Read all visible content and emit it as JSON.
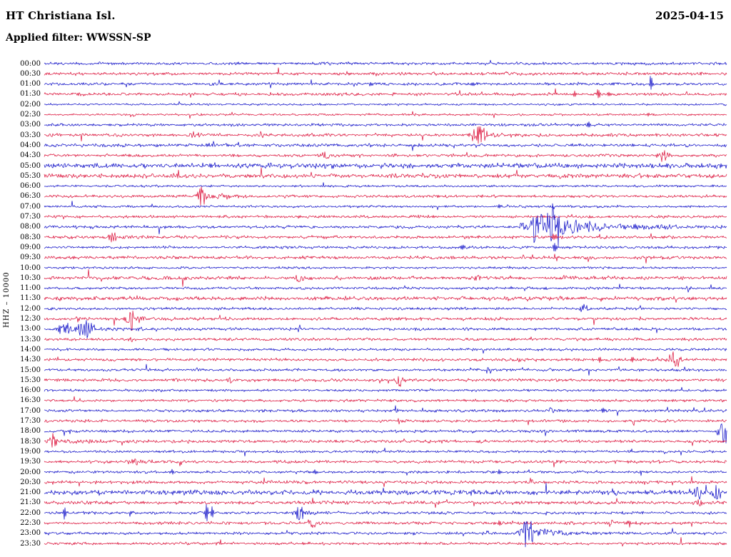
{
  "header": {
    "station": "HT Christiana Isl.",
    "date": "2025-04-15",
    "filter": "Applied filter: WWSSN-SP",
    "channel": "HHZ – 10000"
  },
  "chart_data": {
    "type": "line",
    "variant": "helicorder seismogram, 48 half-hour traces stacked vertically, alternating colors",
    "title": "HT Christiana Isl.",
    "date": "2025-04-15",
    "filter": "WWSSN-SP",
    "ylabel": "HHZ – 10000",
    "row_interval_minutes": 30,
    "grid": false,
    "legend": "none",
    "amp_units": "px at displayed scale",
    "trace_colors": {
      "blue": "#1212c8",
      "red": "#dc143c"
    },
    "rows": [
      {
        "label": "00:00",
        "color": "blue",
        "noise": 1.0
      },
      {
        "label": "00:30",
        "color": "red",
        "noise": 1.1
      },
      {
        "label": "01:00",
        "color": "blue",
        "noise": 1.0
      },
      {
        "label": "01:30",
        "color": "red",
        "noise": 1.05
      },
      {
        "label": "02:00",
        "color": "blue",
        "noise": 0.7
      },
      {
        "label": "02:30",
        "color": "red",
        "noise": 0.75
      },
      {
        "label": "03:00",
        "color": "blue",
        "noise": 0.95
      },
      {
        "label": "03:30",
        "color": "red",
        "noise": 1.1
      },
      {
        "label": "04:00",
        "color": "blue",
        "noise": 1.15
      },
      {
        "label": "04:30",
        "color": "red",
        "noise": 1.05
      },
      {
        "label": "05:00",
        "color": "blue",
        "noise": 1.8
      },
      {
        "label": "05:30",
        "color": "red",
        "noise": 1.55
      },
      {
        "label": "06:00",
        "color": "blue",
        "noise": 0.8
      },
      {
        "label": "06:30",
        "color": "red",
        "noise": 1.0
      },
      {
        "label": "07:00",
        "color": "blue",
        "noise": 0.85
      },
      {
        "label": "07:30",
        "color": "red",
        "noise": 1.0
      },
      {
        "label": "08:00",
        "color": "blue",
        "noise": 1.05
      },
      {
        "label": "08:30",
        "color": "red",
        "noise": 1.1
      },
      {
        "label": "09:00",
        "color": "blue",
        "noise": 0.95
      },
      {
        "label": "09:30",
        "color": "red",
        "noise": 1.15
      },
      {
        "label": "10:00",
        "color": "blue",
        "noise": 0.85
      },
      {
        "label": "10:30",
        "color": "red",
        "noise": 1.25
      },
      {
        "label": "11:00",
        "color": "blue",
        "noise": 0.95
      },
      {
        "label": "11:30",
        "color": "red",
        "noise": 1.35
      },
      {
        "label": "12:00",
        "color": "blue",
        "noise": 0.95
      },
      {
        "label": "12:30",
        "color": "red",
        "noise": 1.1
      },
      {
        "label": "13:00",
        "color": "blue",
        "noise": 1.0
      },
      {
        "label": "13:30",
        "color": "red",
        "noise": 1.05
      },
      {
        "label": "14:00",
        "color": "blue",
        "noise": 0.9
      },
      {
        "label": "14:30",
        "color": "red",
        "noise": 1.05
      },
      {
        "label": "15:00",
        "color": "blue",
        "noise": 0.95
      },
      {
        "label": "15:30",
        "color": "red",
        "noise": 1.1
      },
      {
        "label": "16:00",
        "color": "blue",
        "noise": 0.85
      },
      {
        "label": "16:30",
        "color": "red",
        "noise": 0.9
      },
      {
        "label": "17:00",
        "color": "blue",
        "noise": 0.95
      },
      {
        "label": "17:30",
        "color": "red",
        "noise": 1.0
      },
      {
        "label": "18:00",
        "color": "blue",
        "noise": 1.0
      },
      {
        "label": "18:30",
        "color": "red",
        "noise": 1.1
      },
      {
        "label": "19:00",
        "color": "blue",
        "noise": 0.9
      },
      {
        "label": "19:30",
        "color": "red",
        "noise": 1.1
      },
      {
        "label": "20:00",
        "color": "blue",
        "noise": 0.95
      },
      {
        "label": "20:30",
        "color": "red",
        "noise": 1.1
      },
      {
        "label": "21:00",
        "color": "blue",
        "noise": 1.7
      },
      {
        "label": "21:30",
        "color": "red",
        "noise": 1.2
      },
      {
        "label": "22:00",
        "color": "blue",
        "noise": 1.0
      },
      {
        "label": "22:30",
        "color": "red",
        "noise": 1.1
      },
      {
        "label": "23:00",
        "color": "blue",
        "noise": 1.0
      },
      {
        "label": "23:30",
        "color": "red",
        "noise": 1.0
      }
    ],
    "events": [
      {
        "row": 0,
        "x": 0.41,
        "amp": 4,
        "w": 6
      },
      {
        "row": 1,
        "x": 0.675,
        "amp": 3,
        "w": 3
      },
      {
        "row": 2,
        "x": 0.478,
        "amp": 4,
        "w": 1.5
      },
      {
        "row": 2,
        "x": 0.627,
        "amp": 3,
        "w": 2
      },
      {
        "row": 2,
        "x": 0.889,
        "amp": 14,
        "w": 1.2
      },
      {
        "row": 3,
        "x": 0.777,
        "amp": 4,
        "w": 1.8
      },
      {
        "row": 3,
        "x": 0.812,
        "amp": 9,
        "w": 1.4
      },
      {
        "row": 3,
        "x": 0.828,
        "amp": 6,
        "w": 1.4
      },
      {
        "row": 5,
        "x": 0.885,
        "amp": 2.5,
        "w": 1.5
      },
      {
        "row": 6,
        "x": 0.798,
        "amp": 5,
        "w": 1.6
      },
      {
        "row": 7,
        "x": 0.218,
        "amp": 4,
        "w": 5
      },
      {
        "row": 7,
        "x": 0.316,
        "amp": 4,
        "w": 4
      },
      {
        "row": 7,
        "x": 0.638,
        "amp": 13,
        "w": 8,
        "tail": 45
      },
      {
        "row": 8,
        "x": 0.24,
        "amp": 2.5,
        "w": 2
      },
      {
        "row": 8,
        "x": 0.55,
        "amp": 2.5,
        "w": 2
      },
      {
        "row": 9,
        "x": 0.411,
        "amp": 8,
        "w": 4
      },
      {
        "row": 9,
        "x": 0.908,
        "amp": 10,
        "w": 5
      },
      {
        "row": 11,
        "x": 0.762,
        "amp": 4,
        "w": 5
      },
      {
        "row": 11,
        "x": 0.875,
        "amp": 3,
        "w": 3
      },
      {
        "row": 13,
        "x": 0.23,
        "amp": 14,
        "w": 5,
        "tail": 60
      },
      {
        "row": 14,
        "x": 0.667,
        "amp": 3,
        "w": 2
      },
      {
        "row": 16,
        "x": 0.7,
        "amp": 8,
        "w": 3
      },
      {
        "row": 16,
        "x": 0.722,
        "amp": 30,
        "w": 7
      },
      {
        "row": 16,
        "x": 0.748,
        "amp": 38,
        "w": 9,
        "tail": 90
      },
      {
        "row": 17,
        "x": 0.1,
        "amp": 8,
        "w": 5,
        "tail": 30
      },
      {
        "row": 17,
        "x": 0.748,
        "amp": 6,
        "w": 2
      },
      {
        "row": 18,
        "x": 0.613,
        "amp": 5,
        "w": 2
      },
      {
        "row": 18,
        "x": 0.748,
        "amp": 8,
        "w": 1.6
      },
      {
        "row": 19,
        "x": 0.748,
        "amp": 4,
        "w": 1.6
      },
      {
        "row": 21,
        "x": 0.374,
        "amp": 6,
        "w": 5
      },
      {
        "row": 21,
        "x": 0.634,
        "amp": 5,
        "w": 4
      },
      {
        "row": 21,
        "x": 0.762,
        "amp": 5,
        "w": 3
      },
      {
        "row": 22,
        "x": 0.943,
        "amp": 6,
        "w": 3
      },
      {
        "row": 23,
        "x": 0.024,
        "amp": 4,
        "w": 1.6
      },
      {
        "row": 23,
        "x": 0.469,
        "amp": 5,
        "w": 3
      },
      {
        "row": 24,
        "x": 0.791,
        "amp": 6,
        "w": 4
      },
      {
        "row": 25,
        "x": 0.05,
        "amp": 4,
        "w": 3
      },
      {
        "row": 25,
        "x": 0.129,
        "amp": 17,
        "w": 6,
        "tail": 30
      },
      {
        "row": 26,
        "x": 0.03,
        "amp": 11,
        "w": 6
      },
      {
        "row": 26,
        "x": 0.062,
        "amp": 13,
        "w": 11,
        "tail": 50
      },
      {
        "row": 27,
        "x": 0.129,
        "amp": 3,
        "w": 4
      },
      {
        "row": 29,
        "x": 0.814,
        "amp": 5,
        "w": 2
      },
      {
        "row": 29,
        "x": 0.862,
        "amp": 4,
        "w": 2
      },
      {
        "row": 29,
        "x": 0.924,
        "amp": 12,
        "w": 6
      },
      {
        "row": 30,
        "x": 0.65,
        "amp": 7,
        "w": 3
      },
      {
        "row": 31,
        "x": 0.272,
        "amp": 4,
        "w": 3
      },
      {
        "row": 31,
        "x": 0.521,
        "amp": 10,
        "w": 5,
        "tail": 20
      },
      {
        "row": 34,
        "x": 0.514,
        "amp": 8,
        "w": 2.5
      },
      {
        "row": 34,
        "x": 0.743,
        "amp": 6,
        "w": 3
      },
      {
        "row": 34,
        "x": 0.82,
        "amp": 4,
        "w": 2
      },
      {
        "row": 35,
        "x": 0.521,
        "amp": 4,
        "w": 3
      },
      {
        "row": 36,
        "x": 0.997,
        "amp": 20,
        "w": 6
      },
      {
        "row": 37,
        "x": 0.012,
        "amp": 12,
        "w": 4,
        "tail": 55
      },
      {
        "row": 39,
        "x": 0.132,
        "amp": 8,
        "w": 4,
        "tail": 15
      },
      {
        "row": 40,
        "x": 0.187,
        "amp": 3,
        "w": 2
      },
      {
        "row": 40,
        "x": 0.396,
        "amp": 3,
        "w": 2
      },
      {
        "row": 40,
        "x": 0.667,
        "amp": 3,
        "w": 2
      },
      {
        "row": 41,
        "x": 0.714,
        "amp": 6,
        "w": 3
      },
      {
        "row": 42,
        "x": 0.625,
        "amp": 5,
        "w": 3
      },
      {
        "row": 42,
        "x": 0.836,
        "amp": 5,
        "w": 3
      },
      {
        "row": 42,
        "x": 0.955,
        "amp": 10,
        "w": 6
      },
      {
        "row": 42,
        "x": 0.985,
        "amp": 12,
        "w": 5
      },
      {
        "row": 43,
        "x": 0.962,
        "amp": 6,
        "w": 4
      },
      {
        "row": 44,
        "x": 0.03,
        "amp": 10,
        "w": 1.3
      },
      {
        "row": 44,
        "x": 0.126,
        "amp": 4,
        "w": 1.3
      },
      {
        "row": 44,
        "x": 0.238,
        "amp": 15,
        "w": 1.3
      },
      {
        "row": 44,
        "x": 0.246,
        "amp": 12,
        "w": 1.3
      },
      {
        "row": 44,
        "x": 0.374,
        "amp": 11,
        "w": 6,
        "tail": 30
      },
      {
        "row": 45,
        "x": 0.395,
        "amp": 8,
        "w": 5
      },
      {
        "row": 45,
        "x": 0.667,
        "amp": 4,
        "w": 2
      },
      {
        "row": 45,
        "x": 0.83,
        "amp": 8,
        "w": 2.5
      },
      {
        "row": 45,
        "x": 0.857,
        "amp": 6,
        "w": 2
      },
      {
        "row": 46,
        "x": 0.71,
        "amp": 24,
        "w": 7,
        "tail": 60
      }
    ]
  }
}
